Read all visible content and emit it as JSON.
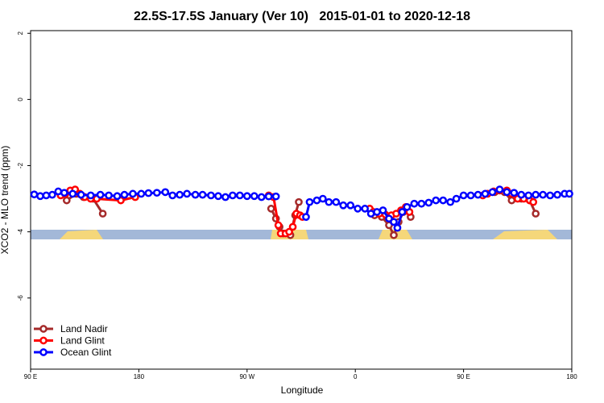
{
  "chart_data": {
    "type": "line",
    "title": "22.5S-17.5S January (Ver 10)   2015-01-01 to 2020-12-18",
    "xlabel": "Longitude",
    "ylabel": "XCO2 - MLO trend (ppm)",
    "xlim": [
      90,
      540
    ],
    "xticks": [
      {
        "value": 90,
        "label": "90 E"
      },
      180,
      {
        "value": 270,
        "label": "90 W"
      },
      {
        "value": 360,
        "label": "0"
      },
      {
        "value": 450,
        "label": "90 E"
      },
      {
        "value": 540,
        "label": "180"
      }
    ],
    "ylim": [
      -8.15,
      2.08
    ],
    "yticks": [
      2,
      0,
      -2,
      -4,
      -6
    ],
    "legend": "bottom-left",
    "series": [
      {
        "name": "Land Nadir",
        "color": "#a52a2a",
        "x": [
          120,
          128,
          134,
          142,
          150,
          null,
          290,
          294,
          297,
          300,
          306,
          310,
          313,
          null,
          376,
          382,
          388,
          392,
          396,
          400,
          403,
          406,
          null,
          476,
          484,
          490,
          498,
          505,
          510
        ],
        "values": [
          -3.05,
          -2.85,
          -2.95,
          -3.0,
          -3.45,
          null,
          -3.3,
          -3.6,
          -3.85,
          -4.05,
          -4.1,
          -3.5,
          -3.1,
          null,
          -3.5,
          -3.55,
          -3.8,
          -4.1,
          -3.7,
          -3.4,
          -3.3,
          -3.55,
          null,
          -2.8,
          -2.8,
          -3.05,
          -3.0,
          -3.05,
          -3.45
        ]
      },
      {
        "name": "Land Glint",
        "color": "#ff0000",
        "x": [
          115,
          119,
          123,
          127,
          131,
          135,
          140,
          145,
          165,
          177,
          null,
          288,
          292,
          296,
          298,
          302,
          305,
          308,
          311,
          314,
          316,
          null,
          372,
          375,
          380,
          385,
          390,
          394,
          398,
          402,
          405,
          null,
          466,
          470,
          475,
          480,
          486,
          490,
          495,
          500,
          505,
          508
        ],
        "values": [
          -2.9,
          -2.85,
          -2.75,
          -2.72,
          -2.85,
          -2.95,
          -3.0,
          -3.0,
          -3.05,
          -2.95,
          null,
          -2.9,
          -2.95,
          -3.8,
          -4.05,
          -4.05,
          -4.0,
          -3.85,
          -3.45,
          -3.5,
          -3.55,
          null,
          -3.3,
          -3.4,
          -3.45,
          -3.48,
          -3.5,
          -3.45,
          -3.35,
          -3.25,
          -3.4,
          null,
          -2.9,
          -2.85,
          -2.78,
          -2.75,
          -2.75,
          -2.85,
          -3.0,
          -3.0,
          -3.05,
          -3.1
        ]
      },
      {
        "name": "Ocean Glint",
        "color": "#0000ff",
        "x": [
          93,
          98,
          103,
          108,
          113,
          118,
          125,
          132,
          140,
          148,
          155,
          162,
          168,
          175,
          182,
          188,
          195,
          202,
          208,
          214,
          220,
          227,
          233,
          240,
          246,
          252,
          258,
          264,
          270,
          276,
          282,
          288,
          294,
          null,
          319,
          322,
          328,
          333,
          338,
          344,
          350,
          356,
          362,
          368,
          373,
          378,
          383,
          388,
          392,
          395,
          399,
          403,
          409,
          415,
          421,
          427,
          433,
          439,
          444,
          450,
          456,
          462,
          468,
          474,
          480,
          486,
          492,
          498,
          504,
          510,
          516,
          522,
          528,
          534,
          538
        ],
        "values": [
          -2.87,
          -2.92,
          -2.9,
          -2.88,
          -2.78,
          -2.82,
          -2.85,
          -2.88,
          -2.9,
          -2.88,
          -2.9,
          -2.92,
          -2.88,
          -2.85,
          -2.85,
          -2.83,
          -2.82,
          -2.8,
          -2.9,
          -2.88,
          -2.85,
          -2.88,
          -2.88,
          -2.9,
          -2.92,
          -2.95,
          -2.9,
          -2.9,
          -2.92,
          -2.92,
          -2.95,
          -2.93,
          -2.93,
          null,
          -3.55,
          -3.1,
          -3.05,
          -3.0,
          -3.1,
          -3.1,
          -3.2,
          -3.2,
          -3.3,
          -3.3,
          -3.45,
          -3.4,
          -3.35,
          -3.6,
          -3.7,
          -3.88,
          -3.4,
          -3.25,
          -3.15,
          -3.15,
          -3.12,
          -3.05,
          -3.05,
          -3.1,
          -3.0,
          -2.9,
          -2.9,
          -2.88,
          -2.85,
          -2.8,
          -2.72,
          -2.8,
          -2.82,
          -2.88,
          -2.9,
          -2.88,
          -2.88,
          -2.9,
          -2.88,
          -2.85,
          -2.85
        ]
      }
    ]
  }
}
